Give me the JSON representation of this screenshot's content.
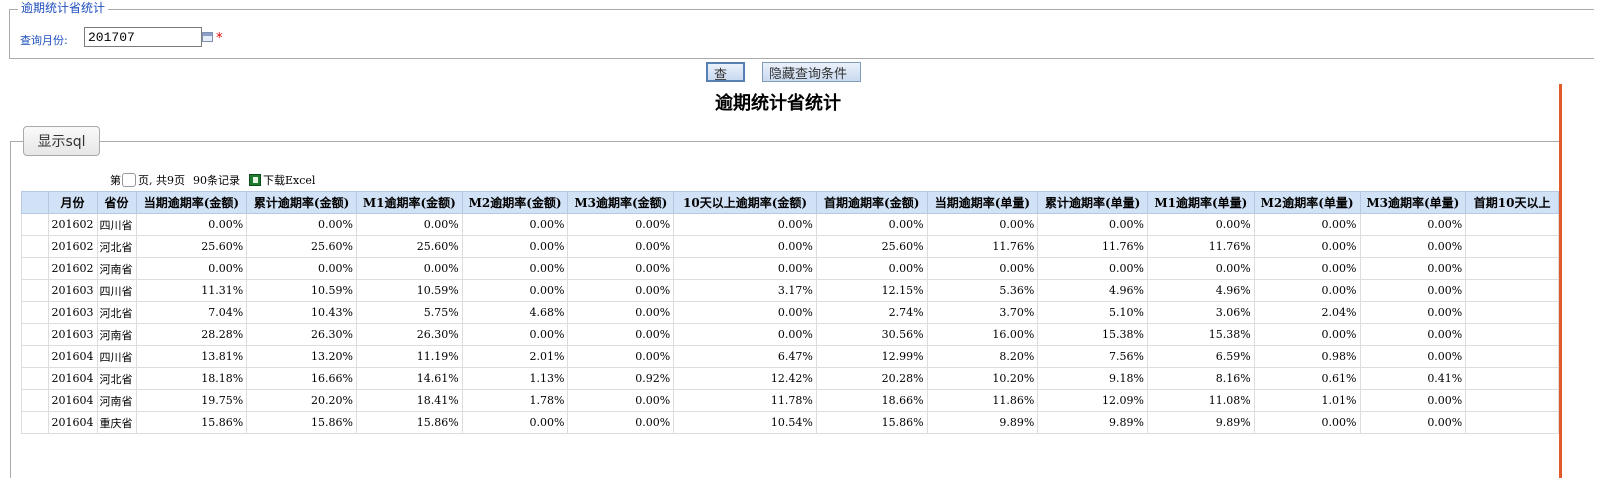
{
  "query_panel": {
    "legend": "逾期统计省统计",
    "month_label": "查询月份:",
    "month_value": "201707",
    "required_mark": "*"
  },
  "buttons": {
    "query": "查询",
    "hide_conditions": "隐藏查询条件",
    "show_sql": "显示sql"
  },
  "report": {
    "title": "逾期统计省统计"
  },
  "pager": {
    "prefix": "第",
    "total": "页, 共9页",
    "records": "90条记录",
    "download": "下载Excel"
  },
  "table": {
    "columns": [
      "月份",
      "省份",
      "当期逾期率(金额)",
      "累计逾期率(金额)",
      "M1逾期率(金额)",
      "M2逾期率(金额)",
      "M3逾期率(金额)",
      "10天以上逾期率(金额)",
      "首期逾期率(金额)",
      "当期逾期率(单量)",
      "累计逾期率(单量)",
      "M1逾期率(单量)",
      "M2逾期率(单量)",
      "M3逾期率(单量)",
      "首期10天以上"
    ],
    "rows": [
      [
        "201602",
        "四川省",
        "0.00%",
        "0.00%",
        "0.00%",
        "0.00%",
        "0.00%",
        "0.00%",
        "0.00%",
        "0.00%",
        "0.00%",
        "0.00%",
        "0.00%",
        "0.00%",
        ""
      ],
      [
        "201602",
        "河北省",
        "25.60%",
        "25.60%",
        "25.60%",
        "0.00%",
        "0.00%",
        "0.00%",
        "25.60%",
        "11.76%",
        "11.76%",
        "11.76%",
        "0.00%",
        "0.00%",
        ""
      ],
      [
        "201602",
        "河南省",
        "0.00%",
        "0.00%",
        "0.00%",
        "0.00%",
        "0.00%",
        "0.00%",
        "0.00%",
        "0.00%",
        "0.00%",
        "0.00%",
        "0.00%",
        "0.00%",
        ""
      ],
      [
        "201603",
        "四川省",
        "11.31%",
        "10.59%",
        "10.59%",
        "0.00%",
        "0.00%",
        "3.17%",
        "12.15%",
        "5.36%",
        "4.96%",
        "4.96%",
        "0.00%",
        "0.00%",
        ""
      ],
      [
        "201603",
        "河北省",
        "7.04%",
        "10.43%",
        "5.75%",
        "4.68%",
        "0.00%",
        "0.00%",
        "2.74%",
        "3.70%",
        "5.10%",
        "3.06%",
        "2.04%",
        "0.00%",
        ""
      ],
      [
        "201603",
        "河南省",
        "28.28%",
        "26.30%",
        "26.30%",
        "0.00%",
        "0.00%",
        "0.00%",
        "30.56%",
        "16.00%",
        "15.38%",
        "15.38%",
        "0.00%",
        "0.00%",
        ""
      ],
      [
        "201604",
        "四川省",
        "13.81%",
        "13.20%",
        "11.19%",
        "2.01%",
        "0.00%",
        "6.47%",
        "12.99%",
        "8.20%",
        "7.56%",
        "6.59%",
        "0.98%",
        "0.00%",
        ""
      ],
      [
        "201604",
        "河北省",
        "18.18%",
        "16.66%",
        "14.61%",
        "1.13%",
        "0.92%",
        "12.42%",
        "20.28%",
        "10.20%",
        "9.18%",
        "8.16%",
        "0.61%",
        "0.41%",
        ""
      ],
      [
        "201604",
        "河南省",
        "19.75%",
        "20.20%",
        "18.41%",
        "1.78%",
        "0.00%",
        "11.78%",
        "18.66%",
        "11.86%",
        "12.09%",
        "11.08%",
        "1.01%",
        "0.00%",
        ""
      ],
      [
        "201604",
        "重庆省",
        "15.86%",
        "15.86%",
        "15.86%",
        "0.00%",
        "0.00%",
        "10.54%",
        "15.86%",
        "9.89%",
        "9.89%",
        "9.89%",
        "0.00%",
        "0.00%",
        ""
      ]
    ]
  },
  "icons": {
    "calendar": "calendar-icon",
    "excel": "excel-icon"
  },
  "colors": {
    "label_blue": "#1e4fbd",
    "header_bg": "#d2e2f6",
    "required_red": "#e00000"
  }
}
